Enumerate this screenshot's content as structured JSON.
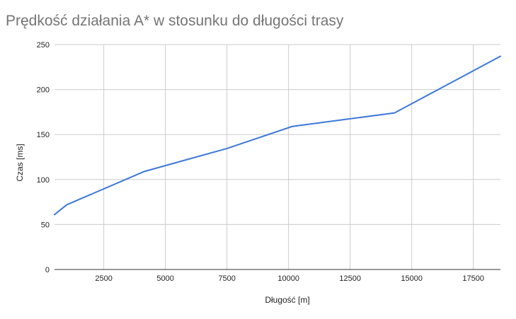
{
  "chart_data": {
    "type": "line",
    "title": "Prędkość działania A* w stosunku do długości trasy",
    "xlabel": "Długość [m]",
    "ylabel": "Czas [ms]",
    "xlim": [
      500,
      18600
    ],
    "ylim": [
      0,
      250
    ],
    "x_ticks": [
      2500,
      5000,
      7500,
      10000,
      12500,
      15000,
      17500
    ],
    "y_ticks": [
      0,
      50,
      100,
      150,
      200,
      250
    ],
    "grid": true,
    "legend": "none",
    "series": [
      {
        "color": "#3c78d8",
        "points": [
          [
            500,
            61
          ],
          [
            1000,
            72
          ],
          [
            4150,
            109
          ],
          [
            7500,
            134.5
          ],
          [
            10150,
            159
          ],
          [
            14300,
            174
          ],
          [
            18600,
            237
          ]
        ]
      }
    ]
  },
  "colors": {
    "grid": "#cccccc",
    "axis": "#333333",
    "title": "#757575",
    "line": "#3c78d8"
  }
}
